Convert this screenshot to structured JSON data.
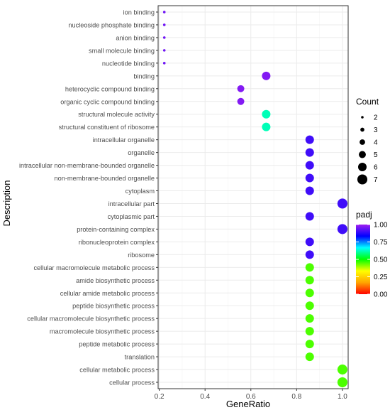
{
  "chart_data": {
    "type": "scatter",
    "title": "",
    "xlabel": "GeneRatio",
    "ylabel": "Description",
    "xlim": [
      0.195,
      1.025
    ],
    "xticks": [
      0.2,
      0.4,
      0.6,
      0.8,
      1.0
    ],
    "xtick_labels": [
      "0.2",
      "0.4",
      "0.6",
      "0.8",
      "1.0"
    ],
    "grid": true,
    "categories": [
      "ion binding",
      "nucleoside phosphate binding",
      "anion binding",
      "small molecule binding",
      "nucleotide binding",
      "binding",
      "heterocyclic compound binding",
      "organic cyclic compound binding",
      "structural molecule activity",
      "structural constituent of ribosome",
      "intracellular organelle",
      "organelle",
      "intracellular non-membrane-bounded organelle",
      "non-membrane-bounded organelle",
      "cytoplasm",
      "intracellular part",
      "cytoplasmic part",
      "protein-containing complex",
      "ribonucleoprotein complex",
      "ribosome",
      "cellular macromolecule metabolic process",
      "amide biosynthetic process",
      "cellular amide metabolic process",
      "peptide biosynthetic process",
      "cellular macromolecule biosynthetic process",
      "macromolecule biosynthetic process",
      "peptide metabolic process",
      "translation",
      "cellular metabolic process",
      "cellular process"
    ],
    "points": [
      {
        "term": "ion binding",
        "gene_ratio": 0.222,
        "count": 2,
        "padj": 0.95
      },
      {
        "term": "nucleoside phosphate binding",
        "gene_ratio": 0.222,
        "count": 2,
        "padj": 0.95
      },
      {
        "term": "anion binding",
        "gene_ratio": 0.222,
        "count": 2,
        "padj": 0.95
      },
      {
        "term": "small molecule binding",
        "gene_ratio": 0.222,
        "count": 2,
        "padj": 0.95
      },
      {
        "term": "nucleotide binding",
        "gene_ratio": 0.222,
        "count": 2,
        "padj": 0.95
      },
      {
        "term": "binding",
        "gene_ratio": 0.667,
        "count": 6,
        "padj": 0.97
      },
      {
        "term": "heterocyclic compound binding",
        "gene_ratio": 0.556,
        "count": 5,
        "padj": 0.97
      },
      {
        "term": "organic cyclic compound binding",
        "gene_ratio": 0.556,
        "count": 5,
        "padj": 0.97
      },
      {
        "term": "structural molecule activity",
        "gene_ratio": 0.667,
        "count": 6,
        "padj": 0.62
      },
      {
        "term": "structural constituent of ribosome",
        "gene_ratio": 0.667,
        "count": 6,
        "padj": 0.62
      },
      {
        "term": "intracellular organelle",
        "gene_ratio": 0.857,
        "count": 6,
        "padj": 0.9
      },
      {
        "term": "organelle",
        "gene_ratio": 0.857,
        "count": 6,
        "padj": 0.9
      },
      {
        "term": "intracellular non-membrane-bounded organelle",
        "gene_ratio": 0.857,
        "count": 6,
        "padj": 0.9
      },
      {
        "term": "non-membrane-bounded organelle",
        "gene_ratio": 0.857,
        "count": 6,
        "padj": 0.9
      },
      {
        "term": "cytoplasm",
        "gene_ratio": 0.857,
        "count": 6,
        "padj": 0.9
      },
      {
        "term": "intracellular part",
        "gene_ratio": 1.0,
        "count": 7,
        "padj": 0.9
      },
      {
        "term": "cytoplasmic part",
        "gene_ratio": 0.857,
        "count": 6,
        "padj": 0.9
      },
      {
        "term": "protein-containing complex",
        "gene_ratio": 1.0,
        "count": 7,
        "padj": 0.9
      },
      {
        "term": "ribonucleoprotein complex",
        "gene_ratio": 0.857,
        "count": 6,
        "padj": 0.9
      },
      {
        "term": "ribosome",
        "gene_ratio": 0.857,
        "count": 6,
        "padj": 0.9
      },
      {
        "term": "cellular macromolecule metabolic process",
        "gene_ratio": 0.857,
        "count": 6,
        "padj": 0.45
      },
      {
        "term": "amide biosynthetic process",
        "gene_ratio": 0.857,
        "count": 6,
        "padj": 0.45
      },
      {
        "term": "cellular amide metabolic process",
        "gene_ratio": 0.857,
        "count": 6,
        "padj": 0.45
      },
      {
        "term": "peptide biosynthetic process",
        "gene_ratio": 0.857,
        "count": 6,
        "padj": 0.45
      },
      {
        "term": "cellular macromolecule biosynthetic process",
        "gene_ratio": 0.857,
        "count": 6,
        "padj": 0.45
      },
      {
        "term": "macromolecule biosynthetic process",
        "gene_ratio": 0.857,
        "count": 6,
        "padj": 0.45
      },
      {
        "term": "peptide metabolic process",
        "gene_ratio": 0.857,
        "count": 6,
        "padj": 0.45
      },
      {
        "term": "translation",
        "gene_ratio": 0.857,
        "count": 6,
        "padj": 0.45
      },
      {
        "term": "cellular metabolic process",
        "gene_ratio": 1.0,
        "count": 7,
        "padj": 0.45
      },
      {
        "term": "cellular process",
        "gene_ratio": 1.0,
        "count": 7,
        "padj": 0.45
      }
    ],
    "legend": {
      "size_title": "Count",
      "size_values": [
        2,
        3,
        4,
        5,
        6,
        7
      ],
      "color_title": "padj",
      "color_range": [
        0.0,
        1.0
      ],
      "color_ticks": [
        0.0,
        0.25,
        0.5,
        0.75,
        1.0
      ],
      "color_tick_labels": [
        "0.00",
        "0.25",
        "0.50",
        "0.75",
        "1.00"
      ],
      "placement": "right"
    },
    "colors": {
      "gradient": [
        "#ff0000",
        "#ffa500",
        "#ffff00",
        "#00ff00",
        "#00ffff",
        "#0000ff",
        "#a020f0"
      ],
      "grid": "#ebebeb",
      "panel_border": "#333333",
      "text": "#4d4d4d"
    }
  }
}
